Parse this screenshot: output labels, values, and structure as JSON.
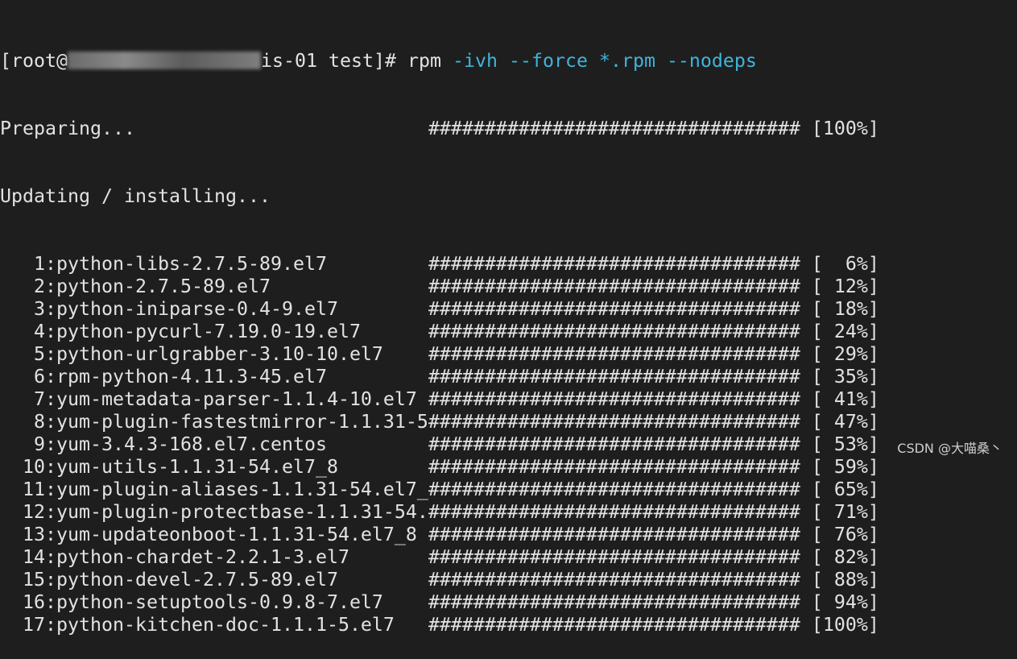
{
  "prompt": {
    "user": "[root@",
    "host_tail": "is-01 test]# ",
    "command": "rpm",
    "args": " -ivh --force *.rpm --nodeps"
  },
  "preparing": {
    "label": "Preparing...",
    "percent": "100%"
  },
  "updating_label": "Updating / installing...",
  "bar": "#################################",
  "colors": {
    "background": "#1e1e1e",
    "text": "#e2e2e2",
    "args": "#3fb4dc"
  },
  "rows": [
    {
      "n": "1",
      "name": "python-libs-2.7.5-89.el7",
      "pct": "6%"
    },
    {
      "n": "2",
      "name": "python-2.7.5-89.el7",
      "pct": "12%"
    },
    {
      "n": "3",
      "name": "python-iniparse-0.4-9.el7",
      "pct": "18%"
    },
    {
      "n": "4",
      "name": "python-pycurl-7.19.0-19.el7",
      "pct": "24%"
    },
    {
      "n": "5",
      "name": "python-urlgrabber-3.10-10.el7",
      "pct": "29%"
    },
    {
      "n": "6",
      "name": "rpm-python-4.11.3-45.el7",
      "pct": "35%"
    },
    {
      "n": "7",
      "name": "yum-metadata-parser-1.1.4-10.el7",
      "pct": "41%"
    },
    {
      "n": "8",
      "name": "yum-plugin-fastestmirror-1.1.31-5",
      "pct": "47%"
    },
    {
      "n": "9",
      "name": "yum-3.4.3-168.el7.centos",
      "pct": "53%"
    },
    {
      "n": "10",
      "name": "yum-utils-1.1.31-54.el7_8",
      "pct": "59%"
    },
    {
      "n": "11",
      "name": "yum-plugin-aliases-1.1.31-54.el7_",
      "pct": "65%"
    },
    {
      "n": "12",
      "name": "yum-plugin-protectbase-1.1.31-54.",
      "pct": "71%"
    },
    {
      "n": "13",
      "name": "yum-updateonboot-1.1.31-54.el7_8",
      "pct": "76%"
    },
    {
      "n": "14",
      "name": "python-chardet-2.2.1-3.el7",
      "pct": "82%"
    },
    {
      "n": "15",
      "name": "python-devel-2.7.5-89.el7",
      "pct": "88%"
    },
    {
      "n": "16",
      "name": "python-setuptools-0.9.8-7.el7",
      "pct": "94%"
    },
    {
      "n": "17",
      "name": "python-kitchen-doc-1.1.1-5.el7",
      "pct": "100%"
    }
  ],
  "watermark": "CSDN @大喵桑丶"
}
